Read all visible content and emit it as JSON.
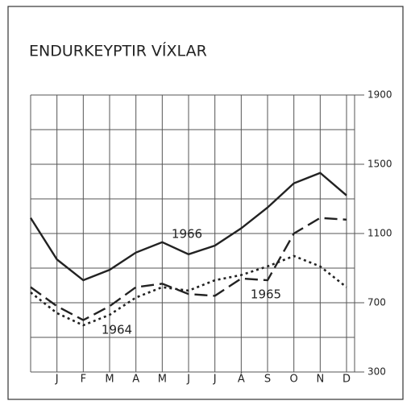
{
  "chart_data": {
    "type": "line",
    "title": "ENDURKEYPTIR VÍXLAR",
    "categories": [
      null,
      "J",
      "F",
      "M",
      "A",
      "M",
      "J",
      "J",
      "Á",
      "S",
      "O",
      "N",
      "D"
    ],
    "series": [
      {
        "name": "1966",
        "color": "#222222",
        "dash": "solid",
        "values": [
          1190,
          950,
          830,
          890,
          990,
          1050,
          980,
          1030,
          1130,
          1250,
          1390,
          1450,
          1320
        ]
      },
      {
        "name": "1965",
        "color": "#222222",
        "dash": "dashed",
        "values": [
          790,
          680,
          600,
          680,
          790,
          810,
          750,
          740,
          840,
          830,
          1100,
          1190,
          1180
        ]
      },
      {
        "name": "1964",
        "color": "#222222",
        "dash": "dotted",
        "values": [
          760,
          640,
          570,
          630,
          730,
          790,
          770,
          830,
          860,
          910,
          970,
          910,
          790
        ]
      }
    ],
    "ylim": [
      300,
      1900
    ],
    "yticks": [
      300,
      700,
      1100,
      1500,
      1900
    ],
    "minor_yticks": [
      500,
      900,
      1300,
      1700
    ],
    "y_axis_side": "right",
    "grid": true
  }
}
